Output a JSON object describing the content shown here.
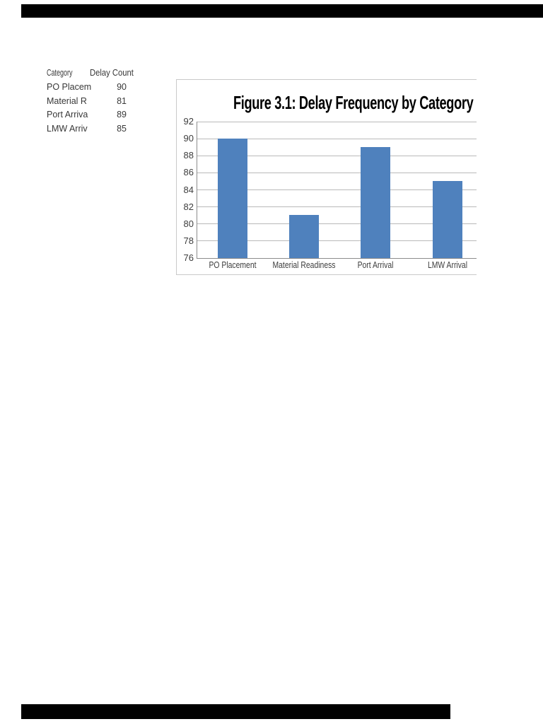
{
  "page": {
    "background": "#ffffff"
  },
  "redactions": {
    "top_bar": "redacted-header",
    "bottom_bar": "redacted-footer",
    "color": "#000000"
  },
  "table": {
    "headers": {
      "category": "Category",
      "count": "Delay Count"
    },
    "rows": [
      {
        "category": "PO Placem",
        "value": "90"
      },
      {
        "category": "Material R",
        "value": "81"
      },
      {
        "category": "Port Arriva",
        "value": "89"
      },
      {
        "category": "LMW Arriv",
        "value": "85"
      }
    ]
  },
  "chart_data": {
    "type": "bar",
    "title": "Figure 3.1: Delay Frequency by Category",
    "categories": [
      "PO Placement",
      "Material Readiness",
      "Port Arrival",
      "LMW Arrival"
    ],
    "values": [
      90,
      81,
      89,
      85
    ],
    "xlabel": "",
    "ylabel": "",
    "ylim": [
      76,
      92
    ],
    "yticks": [
      76,
      78,
      80,
      82,
      84,
      86,
      88,
      90,
      92
    ],
    "grid": true,
    "legend_position": "none",
    "bar_color": "#4f81bd",
    "gridline_color": "#b9b9b9",
    "axis_color": "#8c8c8c",
    "label_color": "#3d3d3d",
    "title_color": "#000000",
    "clipped_right": true
  }
}
